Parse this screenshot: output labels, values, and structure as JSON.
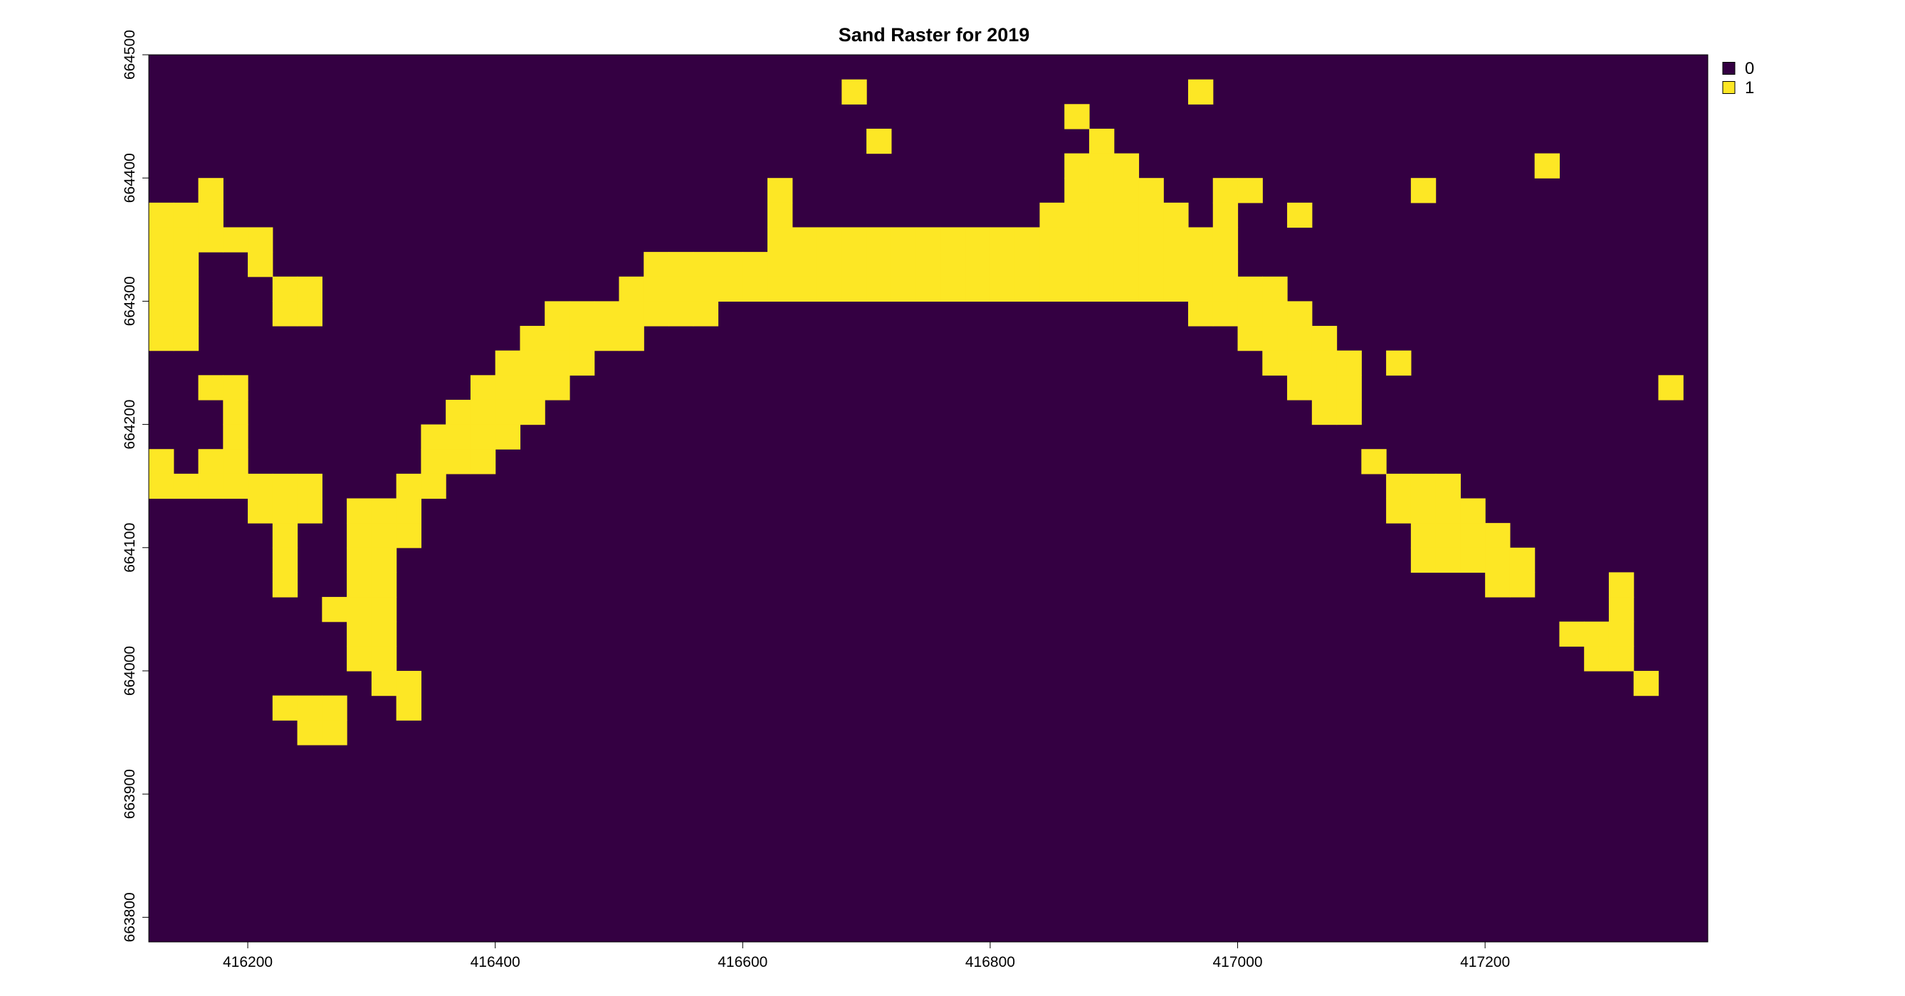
{
  "chart_data": {
    "type": "heatmap",
    "title": "Sand Raster for 2019",
    "xlabel": "",
    "ylabel": "",
    "xlim": [
      416120,
      417380
    ],
    "ylim": [
      663780,
      664500
    ],
    "cell_size": 20,
    "x_ticks": [
      "416200",
      "416400",
      "416600",
      "416800",
      "417000",
      "417200"
    ],
    "y_ticks": [
      "663800",
      "663900",
      "664000",
      "664100",
      "664200",
      "664300",
      "664400",
      "664500"
    ],
    "legend": {
      "placement": "top-right",
      "entries": [
        {
          "label": "0",
          "color": "#340042"
        },
        {
          "label": "1",
          "color": "#fde725"
        }
      ]
    },
    "background_value": 0,
    "value_1_cells": [
      {
        "y": 664460,
        "x": [
          416680,
          416960
        ]
      },
      {
        "y": 664440,
        "x": [
          416860
        ]
      },
      {
        "y": 664420,
        "x": [
          416700,
          416880
        ]
      },
      {
        "y": 664400,
        "x": [
          416860,
          416880,
          416900,
          417240
        ]
      },
      {
        "y": 664380,
        "x": [
          416160,
          416620,
          416860,
          416880,
          416900,
          416920,
          416980,
          417000,
          417140
        ]
      },
      {
        "y": 664360,
        "x": [
          416120,
          416140,
          416160,
          416620,
          416840,
          416860,
          416880,
          416900,
          416920,
          416940,
          416980,
          417040
        ]
      },
      {
        "y": 664340,
        "x": [
          416120,
          416140,
          416160,
          416180,
          416200,
          416620,
          416640,
          416660,
          416680,
          416700,
          416720,
          416740,
          416760,
          416780,
          416800,
          416820,
          416840,
          416860,
          416880,
          416900,
          416920,
          416940,
          416960,
          416980
        ]
      },
      {
        "y": 664320,
        "x": [
          416120,
          416140,
          416200,
          416520,
          416540,
          416560,
          416580,
          416600,
          416620,
          416640,
          416660,
          416680,
          416700,
          416720,
          416740,
          416760,
          416780,
          416800,
          416820,
          416840,
          416860,
          416880,
          416900,
          416920,
          416940,
          416960,
          416980
        ]
      },
      {
        "y": 664300,
        "x": [
          416120,
          416140,
          416220,
          416240,
          416500,
          416520,
          416540,
          416560,
          416580,
          416600,
          416620,
          416640,
          416660,
          416680,
          416700,
          416720,
          416740,
          416760,
          416780,
          416800,
          416820,
          416840,
          416860,
          416880,
          416900,
          416920,
          416940,
          416960,
          416980,
          417000,
          417020
        ]
      },
      {
        "y": 664280,
        "x": [
          416120,
          416140,
          416220,
          416240,
          416440,
          416460,
          416480,
          416500,
          416520,
          416540,
          416560,
          416960,
          416980,
          417000,
          417020,
          417040
        ]
      },
      {
        "y": 664260,
        "x": [
          416120,
          416140,
          416420,
          416440,
          416460,
          416480,
          416500,
          417000,
          417020,
          417040,
          417060
        ]
      },
      {
        "y": 664240,
        "x": [
          416400,
          416420,
          416440,
          416460,
          417020,
          417040,
          417060,
          417080,
          417120
        ]
      },
      {
        "y": 664220,
        "x": [
          416160,
          416180,
          416380,
          416400,
          416420,
          416440,
          417040,
          417060,
          417080,
          417340
        ]
      },
      {
        "y": 664200,
        "x": [
          416180,
          416360,
          416380,
          416400,
          416420,
          417060,
          417080
        ]
      },
      {
        "y": 664180,
        "x": [
          416180,
          416340,
          416360,
          416380,
          416400
        ]
      },
      {
        "y": 664160,
        "x": [
          416120,
          416160,
          416180,
          416340,
          416360,
          416380,
          417100
        ]
      },
      {
        "y": 664140,
        "x": [
          416120,
          416140,
          416160,
          416180,
          416200,
          416220,
          416240,
          416320,
          416340,
          417120,
          417140,
          417160
        ]
      },
      {
        "y": 664120,
        "x": [
          416200,
          416220,
          416240,
          416280,
          416300,
          416320,
          417120,
          417140,
          417160,
          417180
        ]
      },
      {
        "y": 664100,
        "x": [
          416220,
          416280,
          416300,
          416320,
          417140,
          417160,
          417180,
          417200
        ]
      },
      {
        "y": 664080,
        "x": [
          416220,
          416280,
          416300,
          417140,
          417160,
          417180,
          417200,
          417220
        ]
      },
      {
        "y": 664060,
        "x": [
          416220,
          416280,
          416300,
          417200,
          417220,
          417300
        ]
      },
      {
        "y": 664040,
        "x": [
          416260,
          416280,
          416300,
          417300
        ]
      },
      {
        "y": 664020,
        "x": [
          416280,
          416300,
          417260,
          417280,
          417300
        ]
      },
      {
        "y": 664000,
        "x": [
          416280,
          416300,
          417280,
          417300
        ]
      },
      {
        "y": 663980,
        "x": [
          416300,
          416320,
          417320
        ]
      },
      {
        "y": 663960,
        "x": [
          416220,
          416240,
          416260,
          416320
        ]
      },
      {
        "y": 663940,
        "x": [
          416240,
          416260
        ]
      }
    ]
  }
}
